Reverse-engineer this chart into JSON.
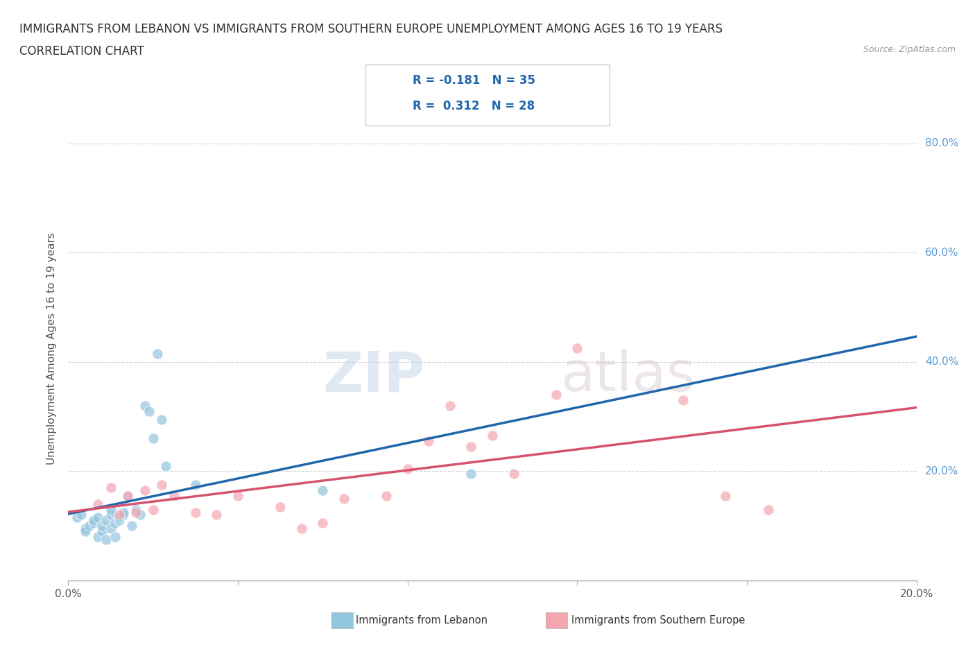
{
  "title_line1": "IMMIGRANTS FROM LEBANON VS IMMIGRANTS FROM SOUTHERN EUROPE UNEMPLOYMENT AMONG AGES 16 TO 19 YEARS",
  "title_line2": "CORRELATION CHART",
  "source_text": "Source: ZipAtlas.com",
  "ylabel": "Unemployment Among Ages 16 to 19 years",
  "xlim": [
    0.0,
    0.2
  ],
  "ylim": [
    0.0,
    0.85
  ],
  "x_ticks": [
    0.0,
    0.04,
    0.08,
    0.12,
    0.16,
    0.2
  ],
  "y_ticks": [
    0.0,
    0.2,
    0.4,
    0.6,
    0.8
  ],
  "lebanon_color": "#92c5de",
  "southern_europe_color": "#f4a6b0",
  "lebanon_line_color": "#2166ac",
  "southern_europe_line_color": "#d6536d",
  "legend_r_lebanon": "-0.181",
  "legend_n_lebanon": "35",
  "legend_r_southern": "0.312",
  "legend_n_southern": "28",
  "watermark_zip": "ZIP",
  "watermark_atlas": "atlas",
  "lebanon_scatter_x": [
    0.002,
    0.003,
    0.004,
    0.004,
    0.005,
    0.006,
    0.006,
    0.007,
    0.007,
    0.008,
    0.008,
    0.009,
    0.009,
    0.01,
    0.01,
    0.01,
    0.011,
    0.011,
    0.012,
    0.012,
    0.013,
    0.013,
    0.014,
    0.015,
    0.016,
    0.017,
    0.018,
    0.019,
    0.02,
    0.021,
    0.022,
    0.023,
    0.03,
    0.06,
    0.095
  ],
  "lebanon_scatter_y": [
    0.115,
    0.12,
    0.095,
    0.09,
    0.1,
    0.105,
    0.11,
    0.08,
    0.115,
    0.09,
    0.1,
    0.075,
    0.11,
    0.12,
    0.13,
    0.095,
    0.105,
    0.08,
    0.11,
    0.115,
    0.12,
    0.125,
    0.155,
    0.1,
    0.13,
    0.12,
    0.32,
    0.31,
    0.26,
    0.415,
    0.295,
    0.21,
    0.175,
    0.165,
    0.195
  ],
  "southern_scatter_x": [
    0.007,
    0.01,
    0.012,
    0.014,
    0.016,
    0.018,
    0.02,
    0.022,
    0.025,
    0.03,
    0.035,
    0.04,
    0.05,
    0.055,
    0.06,
    0.065,
    0.075,
    0.08,
    0.085,
    0.09,
    0.095,
    0.1,
    0.105,
    0.115,
    0.12,
    0.145,
    0.155,
    0.165
  ],
  "southern_scatter_y": [
    0.14,
    0.17,
    0.12,
    0.155,
    0.125,
    0.165,
    0.13,
    0.175,
    0.155,
    0.125,
    0.12,
    0.155,
    0.135,
    0.095,
    0.105,
    0.15,
    0.155,
    0.205,
    0.255,
    0.32,
    0.245,
    0.265,
    0.195,
    0.34,
    0.425,
    0.33,
    0.155,
    0.13
  ],
  "background_color": "#ffffff",
  "grid_color": "#d0d0d0",
  "title_fontsize": 12,
  "axis_label_fontsize": 11,
  "tick_fontsize": 11,
  "tick_color_right": "#5b9bd5",
  "tick_color_bottom": "#555555"
}
